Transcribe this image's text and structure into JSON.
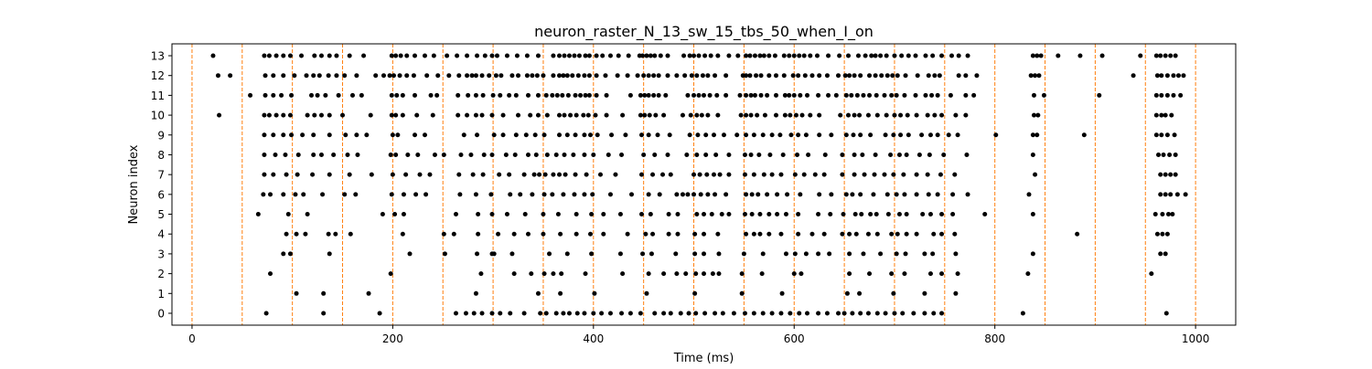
{
  "chart_data": {
    "type": "scatter",
    "title": "neuron_raster_N_13_sw_15_tbs_50_when_I_on",
    "xlabel": "Time (ms)",
    "ylabel": "Neuron index",
    "xlim": [
      -20,
      1040
    ],
    "ylim": [
      -0.6,
      13.6
    ],
    "x_ticks": [
      0,
      200,
      400,
      600,
      800,
      1000
    ],
    "y_ticks": [
      0,
      1,
      2,
      3,
      4,
      5,
      6,
      7,
      8,
      9,
      10,
      11,
      12,
      13
    ],
    "grid": false,
    "marker_color": "#000000",
    "vline_color": "#ff7f0e",
    "vlines": [
      0,
      50,
      100,
      150,
      200,
      250,
      300,
      350,
      400,
      450,
      500,
      550,
      600,
      650,
      700,
      750,
      800,
      850,
      900,
      950,
      1000
    ],
    "series": [
      {
        "neuron": 13,
        "spikes": [
          21,
          72,
          77,
          84,
          91,
          98,
          109,
          122,
          129,
          137,
          144,
          157,
          171,
          199,
          203,
          208,
          214,
          222,
          232,
          241,
          254,
          264,
          274,
          284,
          292,
          299,
          304,
          314,
          324,
          334,
          345,
          360,
          366,
          371,
          376,
          381,
          386,
          392,
          396,
          403,
          409,
          417,
          425,
          435,
          446,
          449,
          453,
          457,
          461,
          467,
          474,
          490,
          496,
          500,
          505,
          511,
          517,
          524,
          535,
          544,
          552,
          556,
          561,
          566,
          570,
          575,
          581,
          590,
          595,
          600,
          605,
          610,
          616,
          623,
          634,
          645,
          654,
          664,
          671,
          677,
          681,
          686,
          692,
          700,
          707,
          714,
          721,
          731,
          738,
          747,
          757,
          764,
          773,
          838,
          842,
          846,
          863,
          885,
          907,
          945,
          961,
          965,
          970,
          975,
          980
        ]
      },
      {
        "neuron": 12,
        "spikes": [
          26,
          38,
          73,
          81,
          91,
          102,
          114,
          121,
          127,
          136,
          144,
          152,
          164,
          183,
          191,
          197,
          201,
          207,
          214,
          221,
          234,
          245,
          256,
          266,
          274,
          279,
          283,
          289,
          296,
          303,
          308,
          319,
          325,
          334,
          339,
          344,
          350,
          360,
          366,
          370,
          374,
          379,
          385,
          391,
          396,
          403,
          412,
          424,
          434,
          444,
          450,
          455,
          460,
          465,
          474,
          483,
          491,
          498,
          503,
          509,
          514,
          521,
          532,
          549,
          552,
          556,
          562,
          567,
          575,
          582,
          590,
          599,
          604,
          611,
          618,
          625,
          633,
          644,
          651,
          655,
          660,
          666,
          675,
          681,
          687,
          693,
          698,
          703,
          711,
          723,
          734,
          740,
          745,
          764,
          771,
          782,
          836,
          840,
          844,
          938,
          962,
          966,
          972,
          978,
          983,
          988
        ]
      },
      {
        "neuron": 11,
        "spikes": [
          58,
          73,
          81,
          89,
          99,
          119,
          125,
          133,
          146,
          160,
          169,
          199,
          204,
          210,
          222,
          238,
          244,
          265,
          275,
          283,
          290,
          300,
          307,
          316,
          323,
          335,
          345,
          353,
          359,
          364,
          369,
          375,
          382,
          387,
          392,
          396,
          403,
          413,
          437,
          447,
          451,
          455,
          460,
          465,
          472,
          494,
          500,
          505,
          510,
          516,
          523,
          532,
          546,
          552,
          557,
          561,
          567,
          573,
          582,
          591,
          595,
          600,
          606,
          613,
          624,
          634,
          642,
          652,
          657,
          663,
          669,
          675,
          682,
          690,
          697,
          702,
          710,
          721,
          731,
          737,
          743,
          756,
          771,
          779,
          839,
          849,
          904,
          961,
          966,
          972,
          978,
          985
        ]
      },
      {
        "neuron": 10,
        "spikes": [
          27,
          72,
          77,
          84,
          91,
          98,
          115,
          122,
          129,
          137,
          150,
          178,
          199,
          203,
          210,
          224,
          240,
          265,
          274,
          283,
          289,
          299,
          310,
          325,
          337,
          345,
          354,
          366,
          371,
          377,
          383,
          390,
          395,
          402,
          413,
          429,
          447,
          451,
          456,
          462,
          470,
          489,
          497,
          503,
          508,
          514,
          524,
          547,
          552,
          557,
          563,
          571,
          582,
          591,
          596,
          602,
          608,
          616,
          625,
          646,
          654,
          660,
          665,
          674,
          683,
          692,
          700,
          706,
          713,
          722,
          733,
          740,
          747,
          761,
          771,
          839,
          843,
          961,
          966,
          970,
          976
        ]
      },
      {
        "neuron": 9,
        "spikes": [
          72,
          81,
          91,
          99,
          110,
          121,
          137,
          153,
          164,
          174,
          200,
          205,
          222,
          232,
          271,
          284,
          301,
          310,
          323,
          333,
          342,
          351,
          366,
          374,
          382,
          391,
          397,
          404,
          418,
          432,
          448,
          455,
          464,
          476,
          496,
          504,
          512,
          520,
          530,
          543,
          552,
          560,
          569,
          578,
          586,
          597,
          604,
          612,
          625,
          637,
          652,
          659,
          666,
          676,
          691,
          699,
          706,
          714,
          727,
          736,
          743,
          754,
          763,
          801,
          838,
          842,
          889,
          961,
          966,
          972,
          979
        ]
      },
      {
        "neuron": 8,
        "spikes": [
          72,
          83,
          93,
          106,
          121,
          129,
          141,
          155,
          165,
          198,
          203,
          215,
          225,
          242,
          251,
          268,
          278,
          291,
          299,
          313,
          322,
          335,
          343,
          354,
          363,
          371,
          380,
          391,
          400,
          415,
          428,
          450,
          461,
          474,
          493,
          503,
          512,
          522,
          535,
          551,
          557,
          565,
          576,
          589,
          603,
          614,
          631,
          648,
          660,
          668,
          681,
          696,
          705,
          712,
          725,
          735,
          749,
          772,
          838,
          963,
          968,
          974,
          980
        ]
      },
      {
        "neuron": 7,
        "spikes": [
          72,
          81,
          94,
          105,
          120,
          137,
          157,
          179,
          200,
          213,
          227,
          237,
          266,
          280,
          290,
          306,
          316,
          331,
          341,
          346,
          352,
          360,
          366,
          372,
          382,
          393,
          407,
          422,
          448,
          459,
          469,
          477,
          500,
          506,
          513,
          520,
          526,
          535,
          551,
          560,
          570,
          578,
          587,
          601,
          610,
          621,
          630,
          648,
          660,
          670,
          680,
          690,
          699,
          709,
          722,
          733,
          746,
          760,
          840,
          965,
          970,
          975,
          980
        ]
      },
      {
        "neuron": 6,
        "spikes": [
          71,
          78,
          91,
          103,
          111,
          130,
          152,
          163,
          199,
          211,
          223,
          233,
          267,
          283,
          298,
          317,
          327,
          339,
          351,
          359,
          370,
          381,
          391,
          399,
          417,
          438,
          455,
          466,
          483,
          489,
          494,
          500,
          507,
          514,
          521,
          532,
          552,
          558,
          564,
          573,
          583,
          593,
          606,
          625,
          637,
          652,
          658,
          666,
          679,
          693,
          702,
          710,
          722,
          734,
          743,
          758,
          773,
          834,
          965,
          970,
          975,
          982,
          990
        ]
      },
      {
        "neuron": 5,
        "spikes": [
          66,
          96,
          115,
          190,
          202,
          211,
          263,
          285,
          299,
          314,
          332,
          350,
          365,
          383,
          398,
          410,
          427,
          448,
          457,
          475,
          484,
          503,
          510,
          518,
          528,
          535,
          551,
          558,
          566,
          575,
          583,
          592,
          604,
          624,
          636,
          649,
          661,
          667,
          676,
          682,
          694,
          705,
          712,
          728,
          736,
          747,
          758,
          790,
          838,
          960,
          967,
          973,
          977
        ]
      },
      {
        "neuron": 4,
        "spikes": [
          94,
          104,
          113,
          136,
          143,
          158,
          210,
          251,
          261,
          285,
          305,
          321,
          335,
          350,
          367,
          383,
          397,
          410,
          434,
          452,
          459,
          475,
          484,
          501,
          510,
          524,
          552,
          560,
          566,
          575,
          587,
          604,
          618,
          630,
          648,
          655,
          662,
          674,
          683,
          697,
          703,
          712,
          722,
          739,
          747,
          760,
          882,
          962,
          967,
          972
        ]
      },
      {
        "neuron": 3,
        "spikes": [
          91,
          98,
          137,
          217,
          252,
          284,
          299,
          301,
          319,
          356,
          374,
          398,
          427,
          449,
          458,
          482,
          501,
          510,
          525,
          550,
          569,
          592,
          601,
          612,
          624,
          635,
          655,
          669,
          686,
          702,
          711,
          730,
          738,
          761,
          838,
          965,
          970
        ]
      },
      {
        "neuron": 2,
        "spikes": [
          78,
          198,
          288,
          321,
          338,
          351,
          360,
          368,
          392,
          429,
          455,
          470,
          483,
          492,
          502,
          510,
          519,
          525,
          548,
          568,
          600,
          607,
          655,
          675,
          697,
          710,
          736,
          747,
          763,
          833,
          956
        ]
      },
      {
        "neuron": 1,
        "spikes": [
          104,
          131,
          176,
          283,
          345,
          367,
          401,
          453,
          501,
          548,
          588,
          653,
          665,
          699,
          730,
          761
        ]
      },
      {
        "neuron": 0,
        "spikes": [
          74,
          131,
          187,
          263,
          273,
          281,
          289,
          299,
          307,
          317,
          331,
          347,
          353,
          363,
          370,
          376,
          384,
          391,
          400,
          408,
          417,
          428,
          437,
          447,
          461,
          470,
          477,
          487,
          495,
          502,
          511,
          521,
          529,
          540,
          551,
          560,
          569,
          578,
          587,
          596,
          605,
          613,
          624,
          633,
          644,
          650,
          658,
          666,
          674,
          683,
          691,
          700,
          708,
          719,
          730,
          739,
          747,
          828,
          971
        ]
      }
    ]
  }
}
